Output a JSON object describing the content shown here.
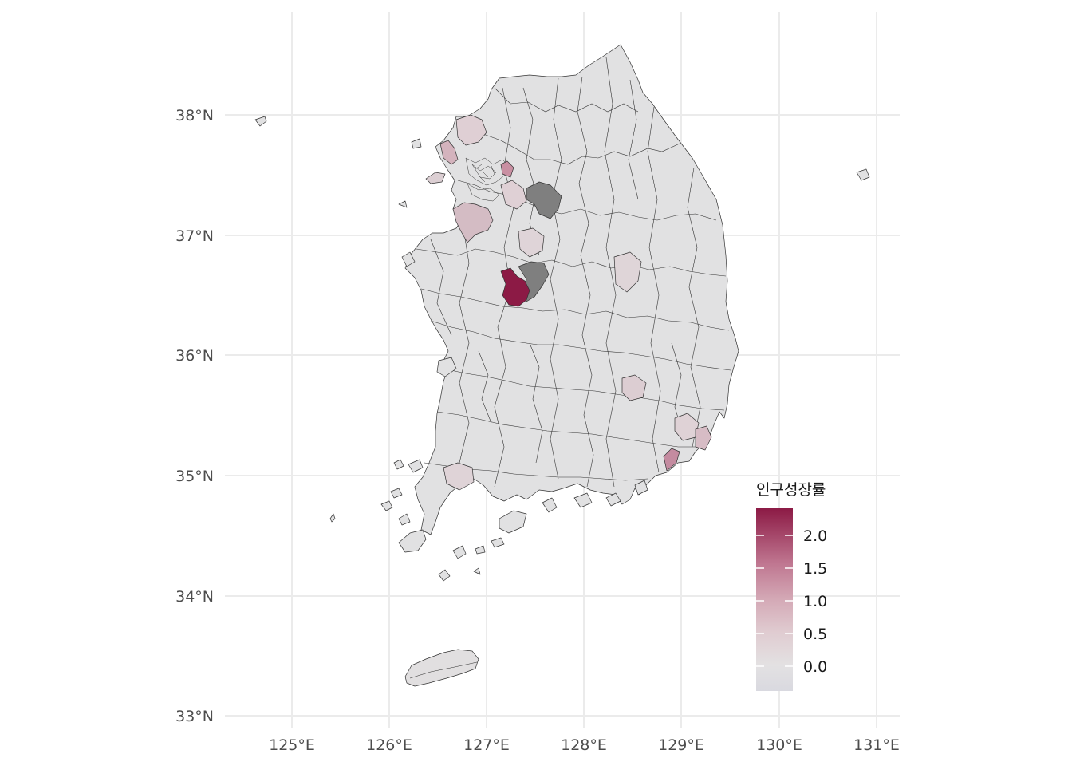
{
  "map": {
    "type": "choropleth",
    "lon_labels": [
      "125°E",
      "126°E",
      "127°E",
      "128°E",
      "129°E",
      "130°E",
      "131°E"
    ],
    "lat_labels": [
      "38°N",
      "37°N",
      "36°N",
      "35°N",
      "34°N",
      "33°N"
    ],
    "lon_values": [
      125,
      126,
      127,
      128,
      129,
      130,
      131
    ],
    "lat_values": [
      38,
      37,
      36,
      35,
      34,
      33
    ],
    "na_color": "#7f7f7f",
    "colors": {
      "low": "#d9d9e0",
      "mid": "#e3e1e2",
      "high": "#8c1a45"
    }
  },
  "legend": {
    "title": "인구성장률",
    "labels": [
      "2.0",
      "1.5",
      "1.0",
      "0.5",
      "0.0"
    ],
    "values": [
      2.0,
      1.5,
      1.0,
      0.5,
      0.0
    ],
    "min": -0.4,
    "max": 2.4
  }
}
